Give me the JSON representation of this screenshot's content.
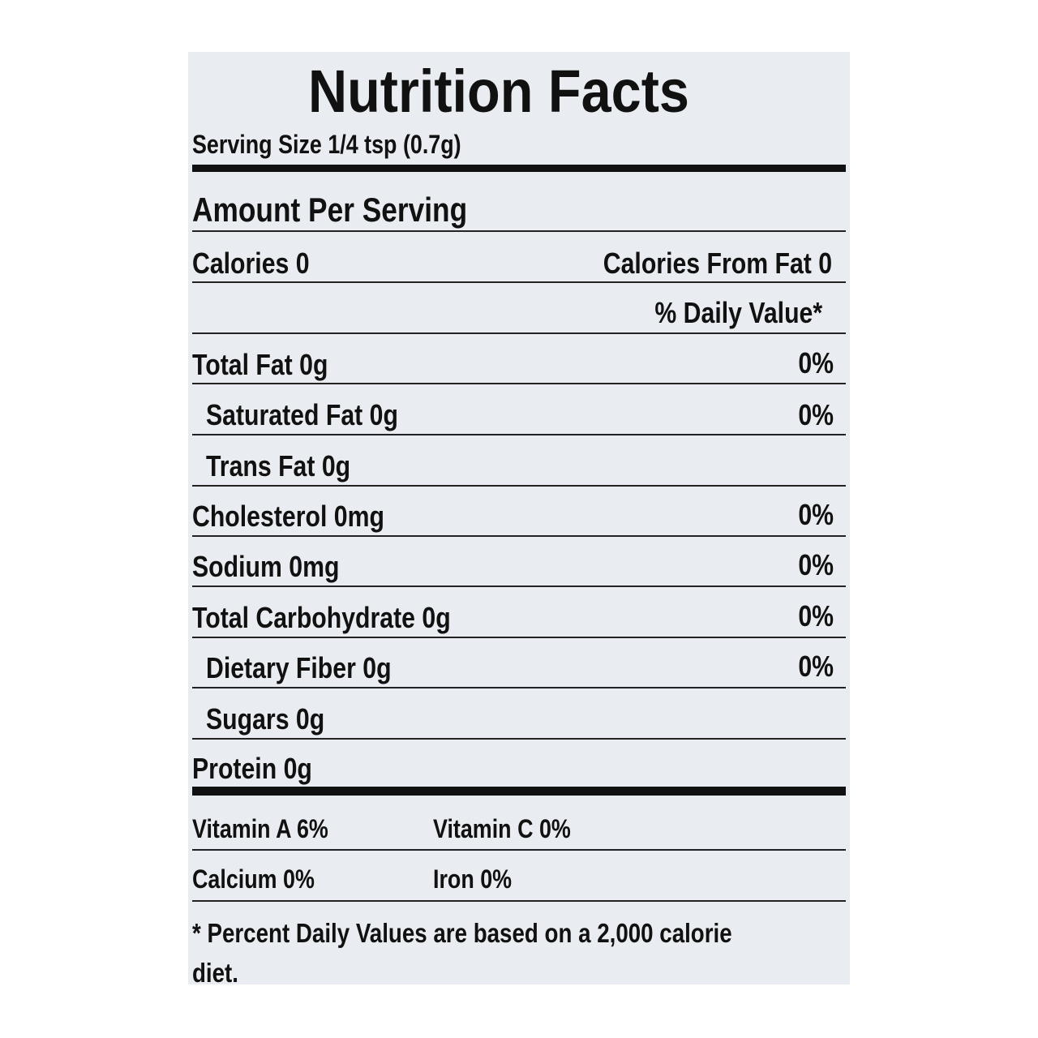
{
  "title": "Nutrition Facts",
  "serving_size": "Serving Size 1/4 tsp (0.7g)",
  "amount_header": "Amount Per Serving",
  "calories": {
    "label": "Calories 0",
    "from_fat": "Calories From Fat 0"
  },
  "daily_value_header": "% Daily Value*",
  "nutrients": [
    {
      "label": "Total Fat 0g",
      "dv": "0%",
      "sub": [
        {
          "label": "Saturated Fat 0g",
          "dv": "0%"
        },
        {
          "label": "Trans Fat 0g"
        }
      ]
    },
    {
      "label": "Cholesterol 0mg",
      "dv": "0%"
    },
    {
      "label": "Sodium 0mg",
      "dv": "0%"
    },
    {
      "label": "Total Carbohydrate 0g",
      "dv": "0%",
      "sub": [
        {
          "label": "Dietary Fiber 0g",
          "dv": "0%"
        },
        {
          "label": "Sugars 0g"
        }
      ]
    },
    {
      "label": "Protein 0g"
    }
  ],
  "vitamins": [
    [
      "Vitamin A 6%",
      "Vitamin C 0%"
    ],
    [
      "Calcium 0%",
      "Iron 0%"
    ]
  ],
  "footnote": "* Percent Daily Values are based on a 2,000 calorie diet."
}
